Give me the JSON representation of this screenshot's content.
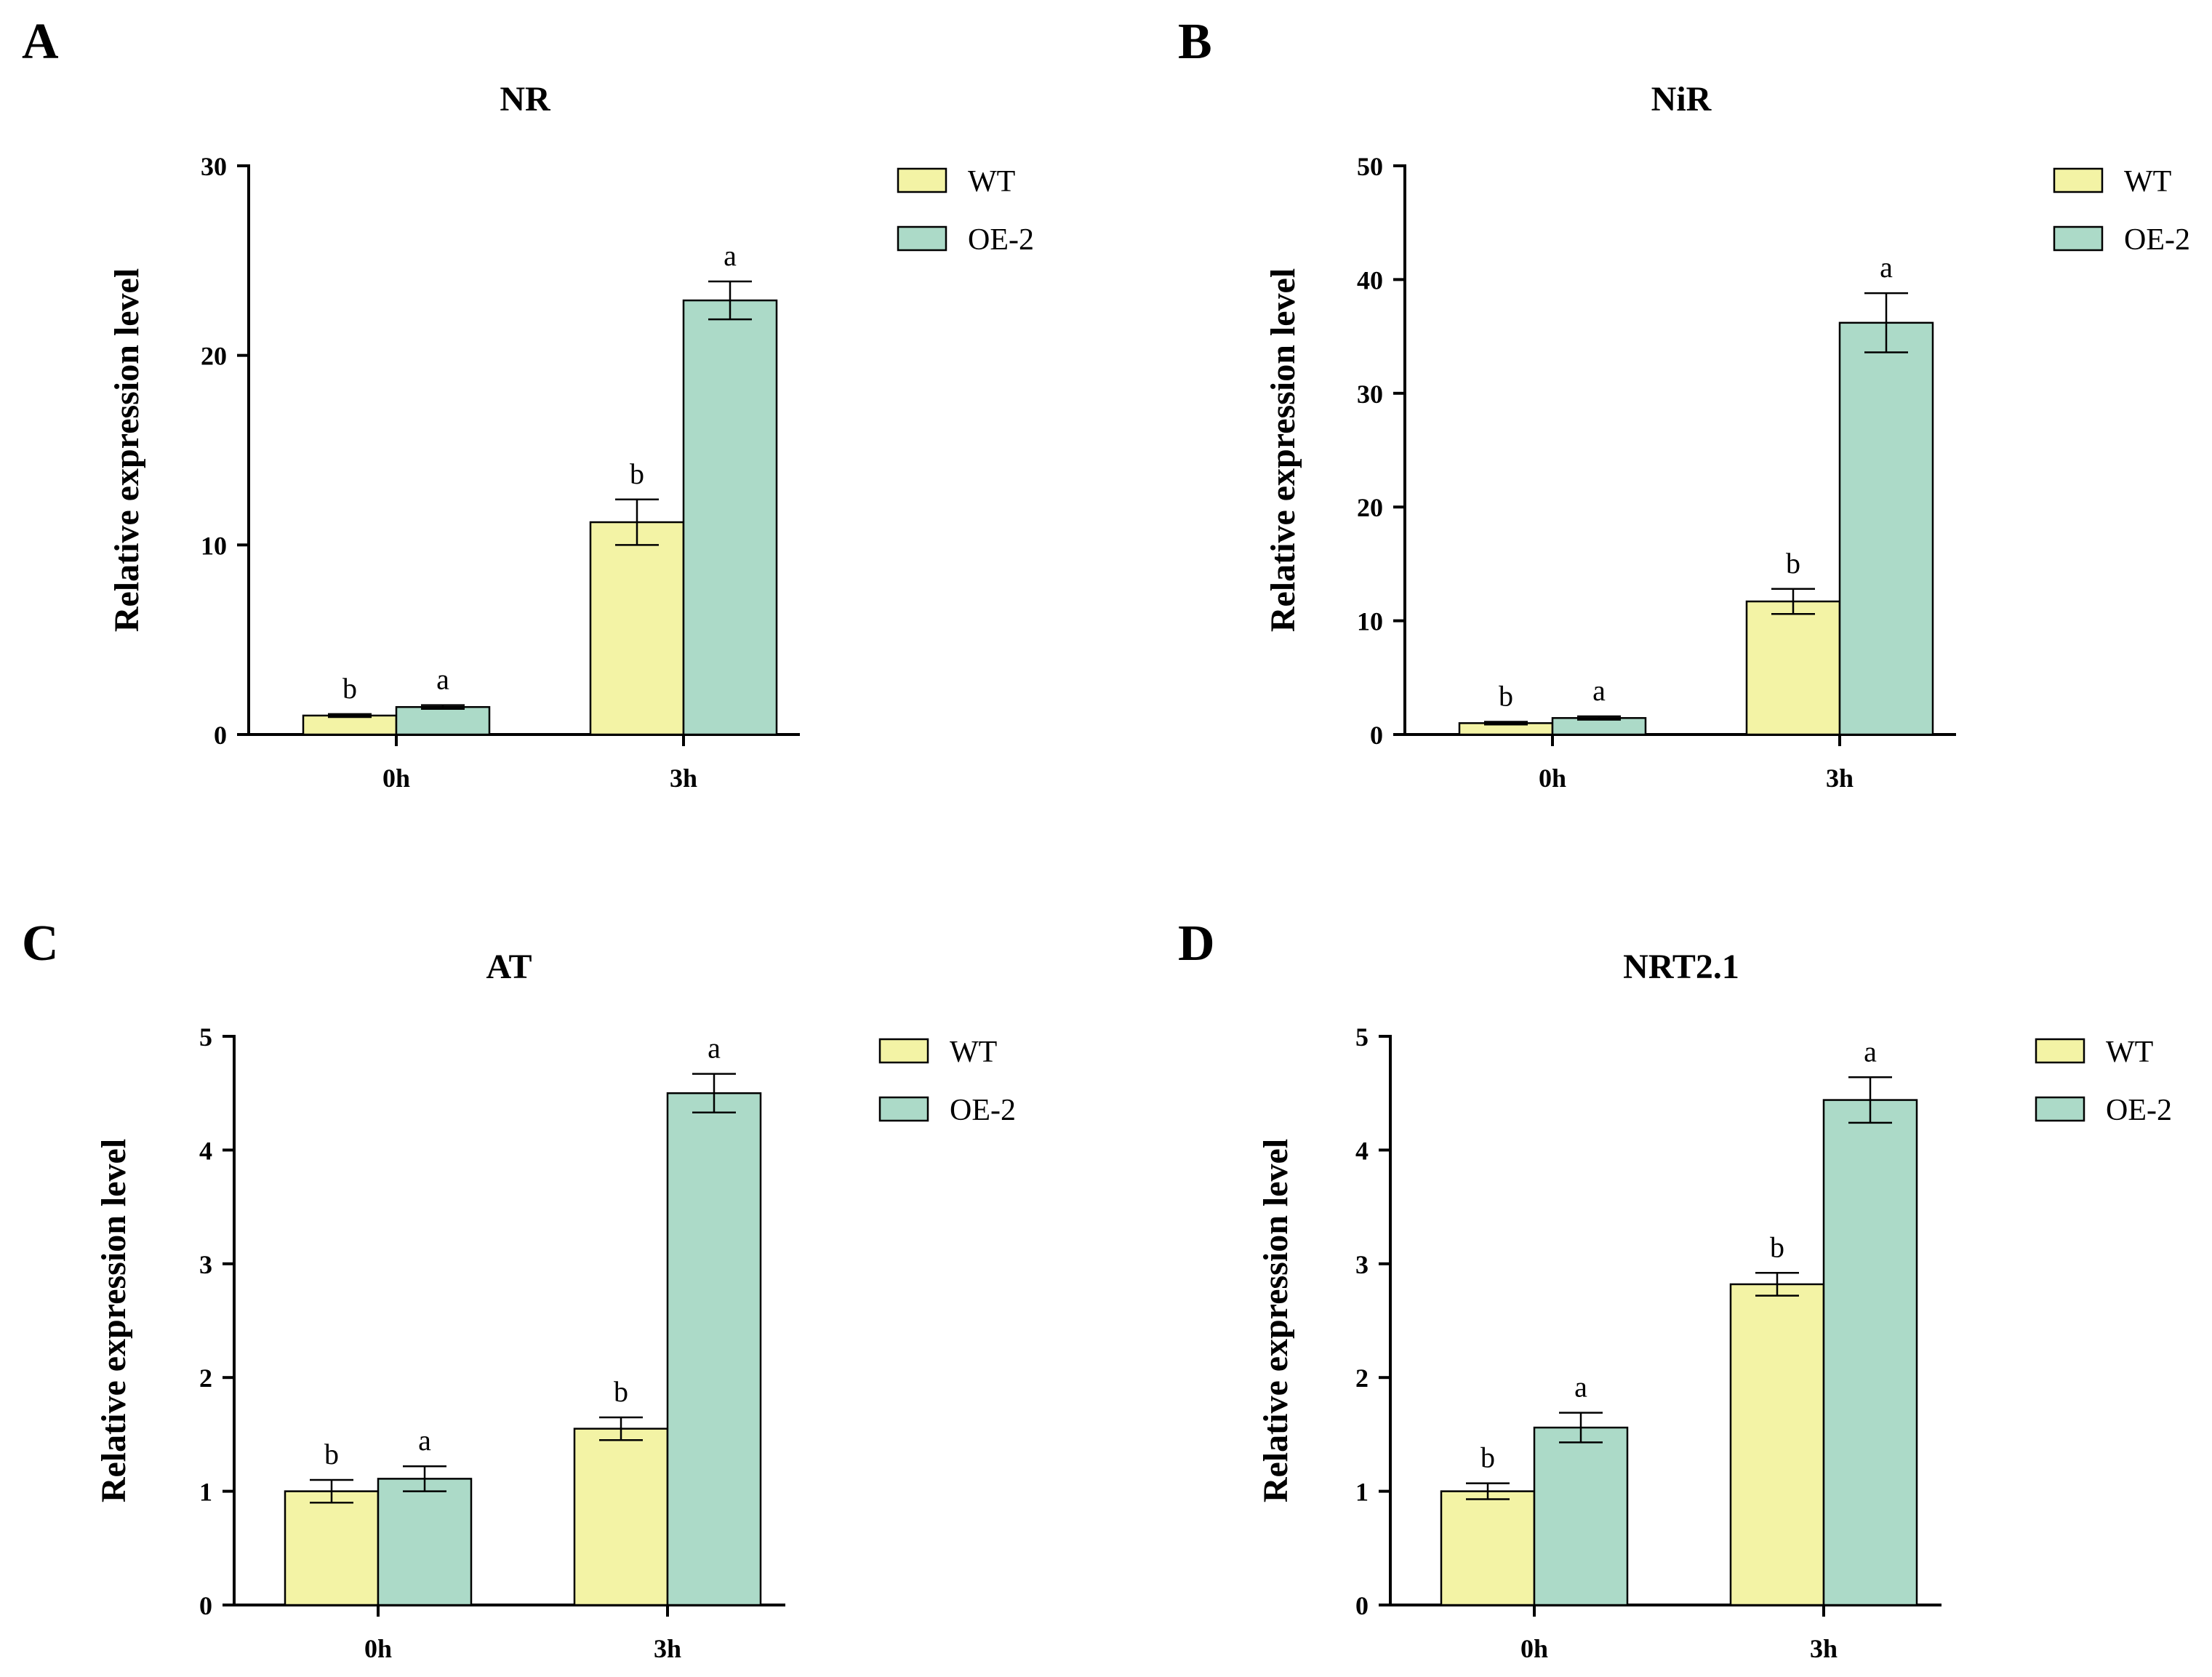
{
  "colors": {
    "WT": "#f3f3a5",
    "OE-2": "#acdac8"
  },
  "chart_data": [
    {
      "panel": "A",
      "type": "bar",
      "title": "NR",
      "ylabel": "Relative expression level",
      "xlabel": "",
      "categories": [
        "0h",
        "3h"
      ],
      "ylim": [
        0,
        30
      ],
      "yticks": [
        0,
        10,
        20,
        30
      ],
      "legend": "top-right",
      "series": [
        {
          "name": "WT",
          "values": [
            1.0,
            11.2
          ],
          "errors": [
            0.08,
            1.2
          ],
          "letters": [
            "b",
            "b"
          ]
        },
        {
          "name": "OE-2",
          "values": [
            1.45,
            22.9
          ],
          "errors": [
            0.1,
            1.0
          ],
          "letters": [
            "a",
            "a"
          ]
        }
      ]
    },
    {
      "panel": "B",
      "type": "bar",
      "title": "NiR",
      "ylabel": "Relative expression level",
      "xlabel": "",
      "categories": [
        "0h",
        "3h"
      ],
      "ylim": [
        0,
        50
      ],
      "yticks": [
        0,
        10,
        20,
        30,
        40,
        50
      ],
      "legend": "top-right",
      "series": [
        {
          "name": "WT",
          "values": [
            1.0,
            11.7
          ],
          "errors": [
            0.12,
            1.1
          ],
          "letters": [
            "b",
            "b"
          ]
        },
        {
          "name": "OE-2",
          "values": [
            1.45,
            36.2
          ],
          "errors": [
            0.15,
            2.6
          ],
          "letters": [
            "a",
            "a"
          ]
        }
      ]
    },
    {
      "panel": "C",
      "type": "bar",
      "title": "AT",
      "ylabel": "Relative expression level",
      "xlabel": "",
      "categories": [
        "0h",
        "3h"
      ],
      "ylim": [
        0,
        5
      ],
      "yticks": [
        0,
        1,
        2,
        3,
        4,
        5
      ],
      "legend": "top-right",
      "series": [
        {
          "name": "WT",
          "values": [
            1.0,
            1.55
          ],
          "errors": [
            0.1,
            0.1
          ],
          "letters": [
            "b",
            "b"
          ]
        },
        {
          "name": "OE-2",
          "values": [
            1.11,
            4.5
          ],
          "errors": [
            0.11,
            0.17
          ],
          "letters": [
            "a",
            "a"
          ]
        }
      ]
    },
    {
      "panel": "D",
      "type": "bar",
      "title": "NRT2.1",
      "ylabel": "Relative expression level",
      "xlabel": "",
      "categories": [
        "0h",
        "3h"
      ],
      "ylim": [
        0,
        5
      ],
      "yticks": [
        0,
        1,
        2,
        3,
        4,
        5
      ],
      "legend": "top-right",
      "series": [
        {
          "name": "WT",
          "values": [
            1.0,
            2.82
          ],
          "errors": [
            0.07,
            0.1
          ],
          "letters": [
            "b",
            "b"
          ]
        },
        {
          "name": "OE-2",
          "values": [
            1.56,
            4.44
          ],
          "errors": [
            0.13,
            0.2
          ],
          "letters": [
            "a",
            "a"
          ]
        }
      ]
    }
  ]
}
